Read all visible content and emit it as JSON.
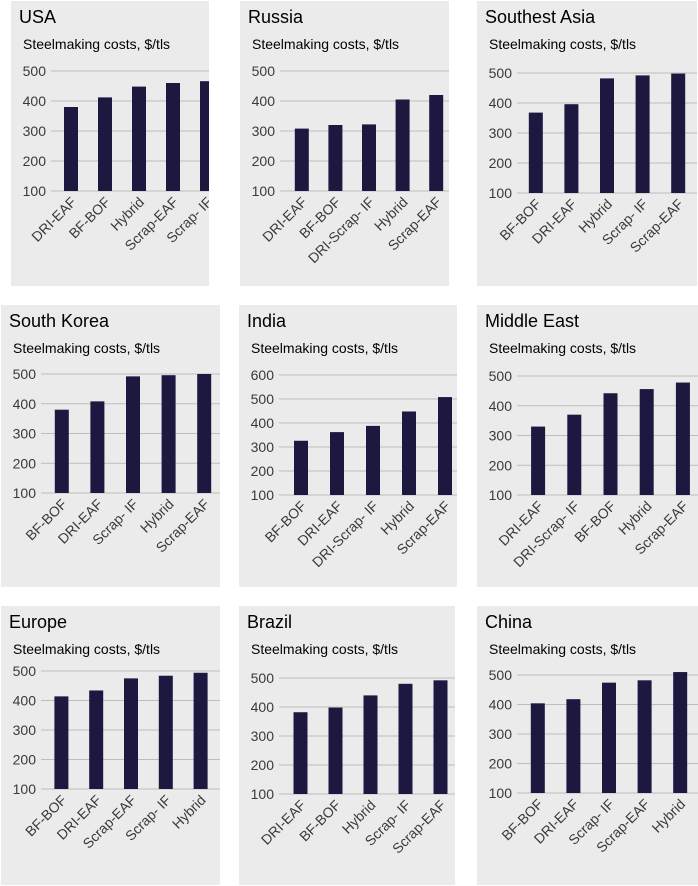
{
  "bar_color": "#1c1840",
  "panel_background": "#ebebeb",
  "chart_data": [
    {
      "type": "bar",
      "title": "USA",
      "ylabel": "Steelmaking costs, $/tls",
      "ylim": [
        100,
        500
      ],
      "yticks": [
        100,
        200,
        300,
        400,
        500
      ],
      "categories": [
        "DRI-EAF",
        "BF-BOF",
        "Hybrid",
        "Scrap-EAF",
        "Scrap- IF"
      ],
      "values": [
        380,
        412,
        448,
        460,
        466
      ]
    },
    {
      "type": "bar",
      "title": "Russia",
      "ylabel": "Steelmaking costs, $/tls",
      "ylim": [
        100,
        500
      ],
      "yticks": [
        100,
        200,
        300,
        400,
        500
      ],
      "categories": [
        "DRI-EAF",
        "BF-BOF",
        "DRI-Scrap- IF",
        "Hybrid",
        "Scrap-EAF"
      ],
      "values": [
        308,
        320,
        322,
        405,
        420
      ]
    },
    {
      "type": "bar",
      "title": "Southest Asia",
      "ylabel": "Steelmaking costs, $/tls",
      "ylim": [
        100,
        500
      ],
      "yticks": [
        100,
        200,
        300,
        400,
        500
      ],
      "categories": [
        "BF-BOF",
        "DRI-EAF",
        "Hybrid",
        "Scrap- IF",
        "Scrap-EAF"
      ],
      "values": [
        368,
        396,
        482,
        492,
        498
      ]
    },
    {
      "type": "bar",
      "title": "South Korea",
      "ylabel": "Steelmaking costs, $/tls",
      "ylim": [
        100,
        500
      ],
      "yticks": [
        100,
        200,
        300,
        400,
        500
      ],
      "categories": [
        "BF-BOF",
        "DRI-EAF",
        "Scrap- IF",
        "Hybrid",
        "Scrap-EAF"
      ],
      "values": [
        380,
        408,
        492,
        496,
        500
      ]
    },
    {
      "type": "bar",
      "title": "India",
      "ylabel": "Steelmaking costs, $/tls",
      "ylim": [
        100,
        600
      ],
      "yticks": [
        100,
        200,
        300,
        400,
        500,
        600
      ],
      "categories": [
        "BF-BOF",
        "DRI-EAF",
        "DRI-Scrap- IF",
        "Hybrid",
        "Scrap-EAF"
      ],
      "values": [
        326,
        362,
        388,
        448,
        508
      ]
    },
    {
      "type": "bar",
      "title": "Middle East",
      "ylabel": "Steelmaking costs, $/tls",
      "ylim": [
        100,
        500
      ],
      "yticks": [
        100,
        200,
        300,
        400,
        500
      ],
      "categories": [
        "DRI-EAF",
        "DRI-Scrap- IF",
        "BF-BOF",
        "Hybrid",
        "Scrap-EAF"
      ],
      "values": [
        330,
        370,
        442,
        456,
        478
      ]
    },
    {
      "type": "bar",
      "title": "Europe",
      "ylabel": "Steelmaking costs, $/tls",
      "ylim": [
        100,
        500
      ],
      "yticks": [
        100,
        200,
        300,
        400,
        500
      ],
      "categories": [
        "BF-BOF",
        "DRI-EAF",
        "Scrap-EAF",
        "Scrap- IF",
        "Hybrid"
      ],
      "values": [
        414,
        434,
        475,
        484,
        494
      ]
    },
    {
      "type": "bar",
      "title": "Brazil",
      "ylabel": "Steelmaking costs, $/tls",
      "ylim": [
        100,
        500
      ],
      "yticks": [
        100,
        200,
        300,
        400,
        500
      ],
      "categories": [
        "DRI-EAF",
        "BF-BOF",
        "Hybrid",
        "Scrap- IF",
        "Scrap-EAF"
      ],
      "values": [
        382,
        398,
        440,
        480,
        492
      ]
    },
    {
      "type": "bar",
      "title": "China",
      "ylabel": "Steelmaking costs, $/tls",
      "ylim": [
        100,
        500
      ],
      "yticks": [
        100,
        200,
        300,
        400,
        500
      ],
      "categories": [
        "BF-BOF",
        "DRI-EAF",
        "Scrap- IF",
        "Scrap-EAF",
        "Hybrid"
      ],
      "values": [
        404,
        418,
        474,
        482,
        510
      ]
    }
  ]
}
